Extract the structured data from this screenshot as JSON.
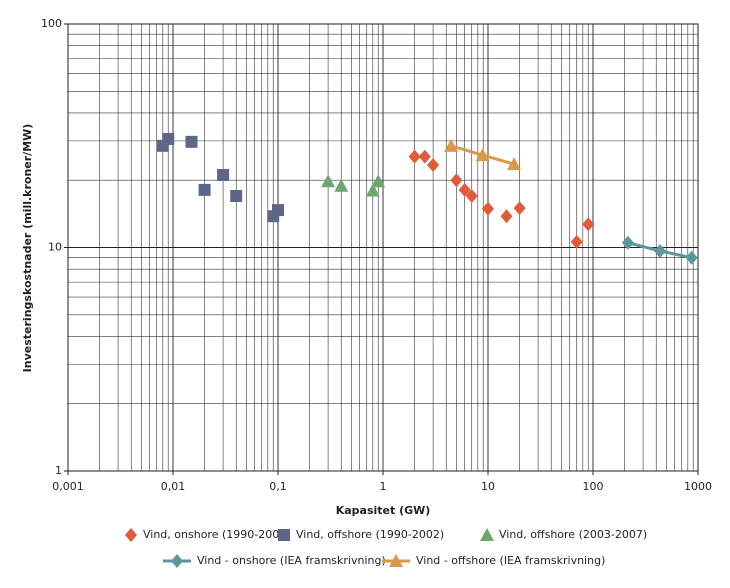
{
  "chart_data": {
    "type": "scatter",
    "x_label": "Kapasitet (GW)",
    "y_label": "Investeringskostnader (mill.kroner/MW)",
    "xscale": "log",
    "yscale": "log",
    "grid": true,
    "minor_grid": true,
    "legend": "bottom",
    "xlim": [
      0.001,
      1000
    ],
    "ylim": [
      1,
      100
    ],
    "xticks": [
      {
        "value": 0.001,
        "label": "0,001"
      },
      {
        "value": 0.01,
        "label": "0,01"
      },
      {
        "value": 0.1,
        "label": "0,1"
      },
      1,
      10,
      100,
      1000
    ],
    "yticks": [
      1,
      10,
      100
    ],
    "series": [
      {
        "name": "Vind, onshore (1990-2006)",
        "color": "#e05c38",
        "marker": "diamond",
        "line": false,
        "x": [
          2,
          2.5,
          3,
          5,
          6,
          7,
          10,
          15,
          20,
          70,
          90
        ],
        "values": [
          25.5,
          25.5,
          23.4,
          20,
          18.1,
          17,
          14.9,
          13.8,
          15,
          10.6,
          12.7
        ]
      },
      {
        "name": "Vind, offshore  (1990-2002)",
        "color": "#5c6689",
        "marker": "square",
        "line": false,
        "x": [
          0.008,
          0.009,
          0.015,
          0.02,
          0.03,
          0.04,
          0.09,
          0.1
        ],
        "values": [
          28.5,
          30.6,
          29.7,
          18.1,
          21.1,
          17,
          13.8,
          14.7
        ]
      },
      {
        "name": "Vind, offshore (2003-2007)",
        "color": "#6aa86e",
        "marker": "triangle",
        "line": false,
        "x": [
          0.3,
          0.4,
          0.8,
          0.9
        ],
        "values": [
          19.8,
          18.9,
          18,
          19.8
        ]
      },
      {
        "name": "Vind - onshore (IEA framskrivning)",
        "color": "#5b979c",
        "marker": "diamond",
        "line": true,
        "x": [
          215,
          435,
          870
        ],
        "values": [
          10.5,
          9.65,
          9
        ]
      },
      {
        "name": "Vind - offshore (IEA framskrivning)",
        "color": "#d8994b",
        "marker": "triangle",
        "line": true,
        "x": [
          4.45,
          8.9,
          17.7
        ],
        "values": [
          28.5,
          25.9,
          23.6
        ]
      }
    ]
  }
}
